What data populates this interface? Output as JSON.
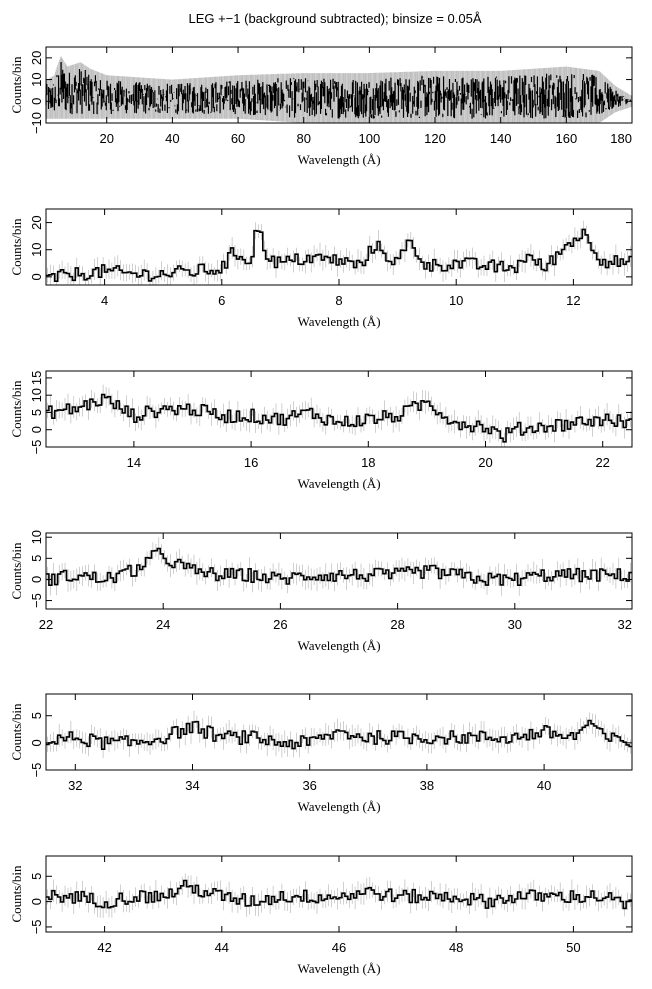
{
  "title": "LEG +−1 (background subtracted); binsize = 0.05Å",
  "colors": {
    "data": "#000000",
    "errorbars": "#b0b0b0",
    "frame": "#000000"
  },
  "chart_data": [
    {
      "type": "line",
      "xlabel": "Wavelength (Å)",
      "ylabel": "Counts/bin",
      "xlim": [
        1.5,
        180
      ],
      "ylim": [
        -10,
        25
      ],
      "xticks": [
        "20",
        "40",
        "60",
        "80",
        "100",
        "120",
        "140",
        "160",
        "180"
      ],
      "yticks": [
        "−10",
        "0",
        "10",
        "20"
      ],
      "envelope": {
        "x": [
          2,
          4,
          6,
          8,
          10,
          12,
          15,
          20,
          40,
          60,
          80,
          100,
          120,
          140,
          160,
          170,
          175,
          180
        ],
        "low": [
          -6,
          -6,
          -6,
          -6,
          -6,
          -6,
          -6,
          -6,
          -6,
          -6,
          -8,
          -8,
          -8,
          -8,
          -8,
          -8,
          -3,
          -0.5
        ],
        "high": [
          8,
          10,
          19,
          14,
          15,
          16,
          13,
          10,
          8,
          10,
          11,
          11,
          12,
          12,
          14,
          12,
          5,
          0.5
        ]
      }
    },
    {
      "type": "line",
      "xlabel": "Wavelength (Å)",
      "ylabel": "Counts/bin",
      "xlim": [
        3,
        13
      ],
      "ylim": [
        -3,
        25
      ],
      "xticks": [
        "4",
        "6",
        "8",
        "10",
        "12"
      ],
      "yticks": [
        "0",
        "10",
        "20"
      ],
      "series": [
        {
          "x": [
            3.0,
            3.5,
            4.0,
            4.5,
            5.0,
            5.5,
            6.0,
            6.2,
            6.5,
            6.6,
            6.8,
            7.0,
            7.5,
            8.0,
            8.4,
            8.6,
            9.0,
            9.2,
            9.5,
            10.0,
            10.5,
            11.0,
            11.2,
            11.5,
            12.0,
            12.2,
            12.5,
            13.0
          ],
          "y": [
            -1,
            1,
            2,
            1,
            1,
            2,
            3,
            9,
            6,
            19,
            7,
            5,
            7,
            6,
            4,
            12,
            5,
            13,
            4,
            5,
            4,
            3,
            8,
            3,
            14,
            16,
            6,
            5
          ]
        }
      ]
    },
    {
      "type": "line",
      "xlabel": "Wavelength (Å)",
      "ylabel": "Counts/bin",
      "xlim": [
        12.5,
        22.5
      ],
      "ylim": [
        -5,
        17
      ],
      "xticks": [
        "14",
        "16",
        "18",
        "20",
        "22"
      ],
      "yticks": [
        "−5",
        "0",
        "5",
        "10",
        "15"
      ],
      "series": [
        {
          "x": [
            12.5,
            13.0,
            13.5,
            14.0,
            14.5,
            15.0,
            15.5,
            16.0,
            16.5,
            17.0,
            17.5,
            18.0,
            18.5,
            19.0,
            19.5,
            20.0,
            20.3,
            20.5,
            21.0,
            21.5,
            22.0,
            22.5
          ],
          "y": [
            5,
            6,
            9,
            4,
            6,
            6,
            4,
            4,
            3,
            5,
            2,
            3,
            4,
            8,
            2,
            1,
            -2,
            0,
            1,
            2,
            3,
            2
          ]
        }
      ]
    },
    {
      "type": "line",
      "xlabel": "Wavelength (Å)",
      "ylabel": "Counts/bin",
      "xlim": [
        22,
        32
      ],
      "ylim": [
        -7,
        11
      ],
      "xticks": [
        "22",
        "24",
        "26",
        "28",
        "30",
        "32"
      ],
      "yticks": [
        "−5",
        "0",
        "5",
        "10"
      ],
      "series": [
        {
          "x": [
            22.0,
            22.5,
            23.0,
            23.5,
            23.9,
            24.5,
            25.0,
            25.5,
            26.0,
            26.5,
            27.0,
            27.5,
            28.0,
            28.5,
            29.0,
            29.5,
            30.0,
            30.5,
            31.0,
            31.5,
            32.0
          ],
          "y": [
            0,
            1,
            0,
            2,
            6,
            2,
            1,
            1,
            0,
            1,
            1,
            1,
            1,
            2,
            1,
            0,
            0,
            1,
            1,
            1,
            1
          ]
        }
      ]
    },
    {
      "type": "line",
      "xlabel": "Wavelength (Å)",
      "ylabel": "Counts/bin",
      "xlim": [
        31.5,
        41.5
      ],
      "ylim": [
        -5,
        9
      ],
      "xticks": [
        "32",
        "34",
        "36",
        "38",
        "40"
      ],
      "yticks": [
        "−5",
        "0",
        "5"
      ],
      "series": [
        {
          "x": [
            31.5,
            32.0,
            32.5,
            33.0,
            33.5,
            34.0,
            34.5,
            35.0,
            35.5,
            36.0,
            36.5,
            37.0,
            37.5,
            38.0,
            38.5,
            39.0,
            39.5,
            40.0,
            40.5,
            40.8,
            41.0,
            41.5
          ],
          "y": [
            0,
            1,
            0,
            0,
            1,
            3,
            1,
            1,
            0,
            0,
            2,
            1,
            1,
            1,
            1,
            1,
            1,
            2,
            1,
            4,
            1,
            0
          ]
        }
      ]
    },
    {
      "type": "line",
      "xlabel": "Wavelength (Å)",
      "ylabel": "Counts/bin",
      "xlim": [
        41,
        51
      ],
      "ylim": [
        -6,
        9
      ],
      "xticks": [
        "42",
        "44",
        "46",
        "48",
        "50"
      ],
      "yticks": [
        "−5",
        "0",
        "5"
      ],
      "series": [
        {
          "x": [
            41.0,
            41.5,
            42.0,
            42.5,
            43.0,
            43.4,
            44.0,
            44.5,
            45.0,
            45.5,
            46.0,
            46.5,
            47.0,
            47.5,
            48.0,
            48.5,
            49.0,
            49.5,
            50.0,
            50.5,
            51.0
          ],
          "y": [
            1,
            1,
            0,
            1,
            1,
            3,
            1,
            0,
            1,
            1,
            1,
            2,
            1,
            1,
            1,
            0,
            1,
            1,
            1,
            1,
            -1
          ]
        }
      ]
    }
  ]
}
